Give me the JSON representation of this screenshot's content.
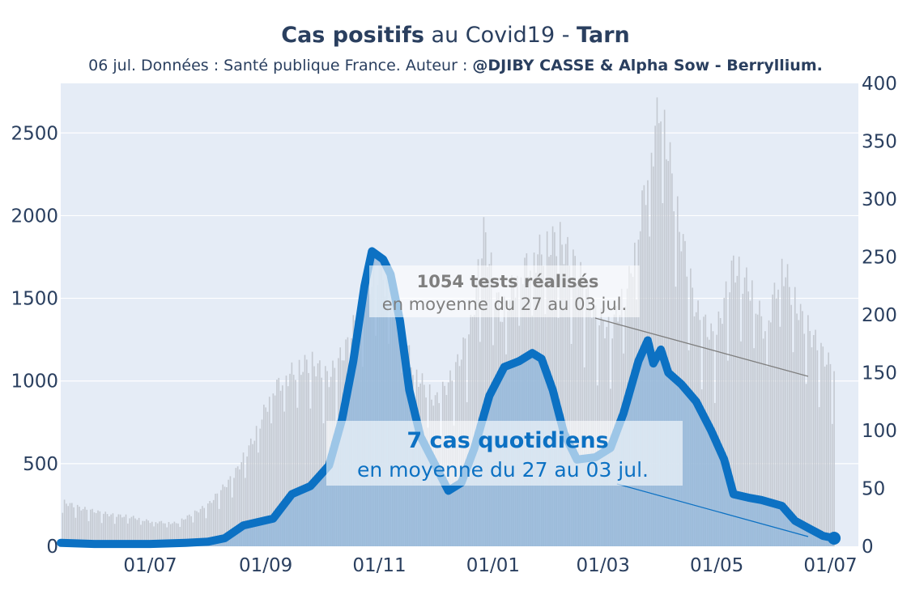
{
  "header": {
    "title_bold1": "Cas positifs",
    "title_mid": " au Covid19 - ",
    "title_bold2": "Tarn",
    "subtitle_plain": "06 jul. Données : Santé publique France. Auteur : ",
    "subtitle_bold": "@DJIBY CASSE & Alpha Sow - Berryllium."
  },
  "annotations": {
    "tests_value": "1054 tests réalisés",
    "tests_period": "en moyenne du 27 au 03 jul.",
    "cases_value": "7 cas quotidiens",
    "cases_period": "en moyenne du 27 au 03 jul."
  },
  "colors": {
    "plot_bg": "#e5ecf6",
    "cases_line": "#0c71c3",
    "cases_fill": "#8fb6db",
    "tests_bars": "#c4c9d1",
    "tests_annotation": "#7f7f7f"
  },
  "chart_data": {
    "type": "line",
    "x_range": [
      "2020-05-14",
      "2021-07-16"
    ],
    "x_ticks": [
      "01/07",
      "01/09",
      "01/11",
      "01/01",
      "01/03",
      "01/05",
      "01/07"
    ],
    "y_left": {
      "ticks": [
        0,
        500,
        1000,
        1500,
        2000,
        2500
      ],
      "range": [
        0,
        2800
      ]
    },
    "y_right": {
      "ticks": [
        0,
        50,
        100,
        150,
        200,
        250,
        300,
        350,
        400
      ],
      "range": [
        0,
        400
      ]
    },
    "grid": true,
    "series": [
      {
        "axis": "left",
        "style": "bars",
        "points": [
          [
            "2020-05-15",
            270
          ],
          [
            "2020-05-25",
            230
          ],
          [
            "2020-06-10",
            190
          ],
          [
            "2020-06-20",
            180
          ],
          [
            "2020-07-01",
            150
          ],
          [
            "2020-07-15",
            140
          ],
          [
            "2020-08-01",
            250
          ],
          [
            "2020-08-15",
            430
          ],
          [
            "2020-08-25",
            640
          ],
          [
            "2020-09-05",
            950
          ],
          [
            "2020-09-15",
            1050
          ],
          [
            "2020-09-25",
            1120
          ],
          [
            "2020-10-05",
            1020
          ],
          [
            "2020-10-15",
            1220
          ],
          [
            "2020-10-25",
            1560
          ],
          [
            "2020-11-01",
            1700
          ],
          [
            "2020-11-10",
            1400
          ],
          [
            "2020-11-20",
            1050
          ],
          [
            "2020-12-01",
            880
          ],
          [
            "2020-12-10",
            1020
          ],
          [
            "2020-12-20",
            1320
          ],
          [
            "2020-12-27",
            1900
          ],
          [
            "2021-01-05",
            1400
          ],
          [
            "2021-01-15",
            1650
          ],
          [
            "2021-01-25",
            1770
          ],
          [
            "2021-02-05",
            1870
          ],
          [
            "2021-02-15",
            1680
          ],
          [
            "2021-02-25",
            1400
          ],
          [
            "2021-03-05",
            1300
          ],
          [
            "2021-03-15",
            1600
          ],
          [
            "2021-03-25",
            2250
          ],
          [
            "2021-04-01",
            2700
          ],
          [
            "2021-04-10",
            2000
          ],
          [
            "2021-04-20",
            1420
          ],
          [
            "2021-04-30",
            1250
          ],
          [
            "2021-05-10",
            1700
          ],
          [
            "2021-05-20",
            1550
          ],
          [
            "2021-05-27",
            1300
          ],
          [
            "2021-06-05",
            1700
          ],
          [
            "2021-06-15",
            1400
          ],
          [
            "2021-06-25",
            1200
          ],
          [
            "2021-07-03",
            1054
          ]
        ]
      },
      {
        "axis": "right",
        "style": "line-area",
        "points": [
          [
            "2020-05-14",
            3
          ],
          [
            "2020-06-01",
            2
          ],
          [
            "2020-07-01",
            2
          ],
          [
            "2020-07-20",
            3
          ],
          [
            "2020-08-01",
            4
          ],
          [
            "2020-08-10",
            7
          ],
          [
            "2020-08-20",
            18
          ],
          [
            "2020-09-05",
            24
          ],
          [
            "2020-09-15",
            45
          ],
          [
            "2020-09-25",
            52
          ],
          [
            "2020-10-05",
            70
          ],
          [
            "2020-10-12",
            110
          ],
          [
            "2020-10-18",
            160
          ],
          [
            "2020-10-24",
            225
          ],
          [
            "2020-10-28",
            255
          ],
          [
            "2020-11-03",
            248
          ],
          [
            "2020-11-07",
            235
          ],
          [
            "2020-11-12",
            195
          ],
          [
            "2020-11-17",
            135
          ],
          [
            "2020-11-23",
            95
          ],
          [
            "2020-12-01",
            70
          ],
          [
            "2020-12-08",
            48
          ],
          [
            "2020-12-15",
            55
          ],
          [
            "2020-12-22",
            85
          ],
          [
            "2020-12-30",
            130
          ],
          [
            "2021-01-07",
            155
          ],
          [
            "2021-01-15",
            160
          ],
          [
            "2021-01-22",
            167
          ],
          [
            "2021-01-27",
            162
          ],
          [
            "2021-02-02",
            135
          ],
          [
            "2021-02-08",
            98
          ],
          [
            "2021-02-15",
            75
          ],
          [
            "2021-02-25",
            77
          ],
          [
            "2021-03-05",
            85
          ],
          [
            "2021-03-12",
            115
          ],
          [
            "2021-03-20",
            160
          ],
          [
            "2021-03-25",
            178
          ],
          [
            "2021-03-28",
            158
          ],
          [
            "2021-04-01",
            170
          ],
          [
            "2021-04-05",
            150
          ],
          [
            "2021-04-12",
            140
          ],
          [
            "2021-04-20",
            125
          ],
          [
            "2021-04-28",
            100
          ],
          [
            "2021-05-05",
            75
          ],
          [
            "2021-05-10",
            45
          ],
          [
            "2021-05-18",
            42
          ],
          [
            "2021-05-25",
            40
          ],
          [
            "2021-06-05",
            35
          ],
          [
            "2021-06-12",
            22
          ],
          [
            "2021-06-20",
            15
          ],
          [
            "2021-06-27",
            9
          ],
          [
            "2021-07-03",
            7
          ]
        ]
      }
    ]
  }
}
